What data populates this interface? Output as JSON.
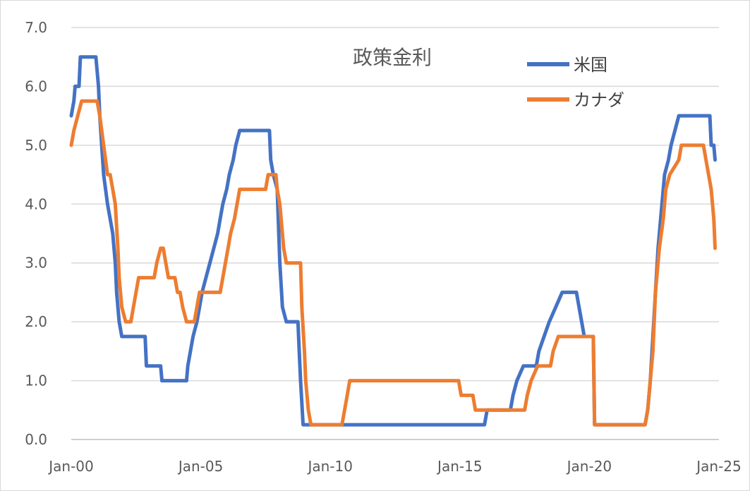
{
  "chart_data": {
    "type": "line",
    "title": "政策金利",
    "xlabel": "",
    "ylabel": "",
    "ylim": [
      0,
      7
    ],
    "xlim": [
      2000,
      2025
    ],
    "y_ticks": [
      "0.0",
      "1.0",
      "2.0",
      "3.0",
      "4.0",
      "5.0",
      "6.0",
      "7.0"
    ],
    "y_tick_values": [
      0,
      1,
      2,
      3,
      4,
      5,
      6,
      7
    ],
    "x_ticks": [
      "Jan-00",
      "Jan-05",
      "Jan-10",
      "Jan-15",
      "Jan-20",
      "Jan-25"
    ],
    "x_tick_values": [
      2000,
      2005,
      2010,
      2015,
      2020,
      2025
    ],
    "grid": "horizontal",
    "legend": "top-right",
    "series": [
      {
        "name": "米国",
        "color": "#4472C4",
        "points": [
          [
            2000.0,
            5.5
          ],
          [
            2000.1,
            5.75
          ],
          [
            2000.15,
            6.0
          ],
          [
            2000.3,
            6.0
          ],
          [
            2000.35,
            6.5
          ],
          [
            2000.95,
            6.5
          ],
          [
            2001.05,
            6.0
          ],
          [
            2001.1,
            5.5
          ],
          [
            2001.25,
            4.5
          ],
          [
            2001.4,
            4.0
          ],
          [
            2001.5,
            3.75
          ],
          [
            2001.6,
            3.5
          ],
          [
            2001.7,
            3.0
          ],
          [
            2001.75,
            2.5
          ],
          [
            2001.85,
            2.0
          ],
          [
            2001.95,
            1.75
          ],
          [
            2002.85,
            1.75
          ],
          [
            2002.9,
            1.25
          ],
          [
            2003.45,
            1.25
          ],
          [
            2003.5,
            1.0
          ],
          [
            2004.45,
            1.0
          ],
          [
            2004.5,
            1.25
          ],
          [
            2004.6,
            1.5
          ],
          [
            2004.7,
            1.75
          ],
          [
            2004.85,
            2.0
          ],
          [
            2004.95,
            2.25
          ],
          [
            2005.05,
            2.5
          ],
          [
            2005.2,
            2.75
          ],
          [
            2005.35,
            3.0
          ],
          [
            2005.5,
            3.25
          ],
          [
            2005.65,
            3.5
          ],
          [
            2005.75,
            3.75
          ],
          [
            2005.85,
            4.0
          ],
          [
            2006.0,
            4.25
          ],
          [
            2006.1,
            4.5
          ],
          [
            2006.25,
            4.75
          ],
          [
            2006.35,
            5.0
          ],
          [
            2006.5,
            5.25
          ],
          [
            2007.65,
            5.25
          ],
          [
            2007.7,
            4.75
          ],
          [
            2007.8,
            4.5
          ],
          [
            2007.95,
            4.25
          ],
          [
            2008.05,
            3.0
          ],
          [
            2008.15,
            2.25
          ],
          [
            2008.3,
            2.0
          ],
          [
            2008.75,
            2.0
          ],
          [
            2008.8,
            1.5
          ],
          [
            2008.85,
            1.0
          ],
          [
            2008.95,
            0.25
          ],
          [
            2015.95,
            0.25
          ],
          [
            2016.05,
            0.5
          ],
          [
            2016.95,
            0.5
          ],
          [
            2017.05,
            0.75
          ],
          [
            2017.2,
            1.0
          ],
          [
            2017.45,
            1.25
          ],
          [
            2017.95,
            1.25
          ],
          [
            2018.05,
            1.5
          ],
          [
            2018.25,
            1.75
          ],
          [
            2018.45,
            2.0
          ],
          [
            2018.7,
            2.25
          ],
          [
            2018.95,
            2.5
          ],
          [
            2019.5,
            2.5
          ],
          [
            2019.6,
            2.25
          ],
          [
            2019.7,
            2.0
          ],
          [
            2019.8,
            1.75
          ],
          [
            2020.15,
            1.75
          ],
          [
            2020.2,
            0.25
          ],
          [
            2022.15,
            0.25
          ],
          [
            2022.25,
            0.5
          ],
          [
            2022.35,
            1.0
          ],
          [
            2022.45,
            1.75
          ],
          [
            2022.55,
            2.5
          ],
          [
            2022.65,
            3.25
          ],
          [
            2022.8,
            4.0
          ],
          [
            2022.9,
            4.5
          ],
          [
            2023.05,
            4.75
          ],
          [
            2023.15,
            5.0
          ],
          [
            2023.3,
            5.25
          ],
          [
            2023.45,
            5.5
          ],
          [
            2024.65,
            5.5
          ],
          [
            2024.7,
            5.0
          ],
          [
            2024.8,
            5.0
          ],
          [
            2024.85,
            4.75
          ]
        ]
      },
      {
        "name": "カナダ",
        "color": "#ED7D31",
        "points": [
          [
            2000.0,
            5.0
          ],
          [
            2000.1,
            5.25
          ],
          [
            2000.25,
            5.5
          ],
          [
            2000.4,
            5.75
          ],
          [
            2001.0,
            5.75
          ],
          [
            2001.1,
            5.5
          ],
          [
            2001.25,
            5.0
          ],
          [
            2001.4,
            4.5
          ],
          [
            2001.5,
            4.5
          ],
          [
            2001.6,
            4.25
          ],
          [
            2001.7,
            4.0
          ],
          [
            2001.8,
            3.25
          ],
          [
            2001.85,
            2.75
          ],
          [
            2001.95,
            2.25
          ],
          [
            2002.1,
            2.0
          ],
          [
            2002.3,
            2.0
          ],
          [
            2002.4,
            2.25
          ],
          [
            2002.5,
            2.5
          ],
          [
            2002.6,
            2.75
          ],
          [
            2003.2,
            2.75
          ],
          [
            2003.3,
            3.0
          ],
          [
            2003.45,
            3.25
          ],
          [
            2003.55,
            3.25
          ],
          [
            2003.65,
            3.0
          ],
          [
            2003.75,
            2.75
          ],
          [
            2004.0,
            2.75
          ],
          [
            2004.1,
            2.5
          ],
          [
            2004.2,
            2.5
          ],
          [
            2004.3,
            2.25
          ],
          [
            2004.45,
            2.0
          ],
          [
            2004.75,
            2.0
          ],
          [
            2004.85,
            2.25
          ],
          [
            2004.95,
            2.5
          ],
          [
            2005.75,
            2.5
          ],
          [
            2005.85,
            2.75
          ],
          [
            2005.95,
            3.0
          ],
          [
            2006.05,
            3.25
          ],
          [
            2006.15,
            3.5
          ],
          [
            2006.3,
            3.75
          ],
          [
            2006.4,
            4.0
          ],
          [
            2006.5,
            4.25
          ],
          [
            2007.5,
            4.25
          ],
          [
            2007.6,
            4.5
          ],
          [
            2007.9,
            4.5
          ],
          [
            2007.95,
            4.25
          ],
          [
            2008.05,
            4.0
          ],
          [
            2008.2,
            3.25
          ],
          [
            2008.3,
            3.0
          ],
          [
            2008.85,
            3.0
          ],
          [
            2008.9,
            2.25
          ],
          [
            2009.0,
            1.5
          ],
          [
            2009.05,
            1.0
          ],
          [
            2009.15,
            0.5
          ],
          [
            2009.25,
            0.25
          ],
          [
            2010.45,
            0.25
          ],
          [
            2010.55,
            0.5
          ],
          [
            2010.65,
            0.75
          ],
          [
            2010.75,
            1.0
          ],
          [
            2014.95,
            1.0
          ],
          [
            2015.05,
            0.75
          ],
          [
            2015.5,
            0.75
          ],
          [
            2015.6,
            0.5
          ],
          [
            2017.5,
            0.5
          ],
          [
            2017.6,
            0.75
          ],
          [
            2017.75,
            1.0
          ],
          [
            2018.0,
            1.25
          ],
          [
            2018.5,
            1.25
          ],
          [
            2018.6,
            1.5
          ],
          [
            2018.8,
            1.75
          ],
          [
            2020.15,
            1.75
          ],
          [
            2020.2,
            0.25
          ],
          [
            2022.15,
            0.25
          ],
          [
            2022.25,
            0.5
          ],
          [
            2022.35,
            1.0
          ],
          [
            2022.45,
            1.5
          ],
          [
            2022.55,
            2.5
          ],
          [
            2022.7,
            3.25
          ],
          [
            2022.85,
            3.75
          ],
          [
            2022.95,
            4.25
          ],
          [
            2023.1,
            4.5
          ],
          [
            2023.45,
            4.75
          ],
          [
            2023.55,
            5.0
          ],
          [
            2024.4,
            5.0
          ],
          [
            2024.5,
            4.75
          ],
          [
            2024.6,
            4.5
          ],
          [
            2024.7,
            4.25
          ],
          [
            2024.8,
            3.75
          ],
          [
            2024.85,
            3.25
          ]
        ]
      }
    ]
  }
}
